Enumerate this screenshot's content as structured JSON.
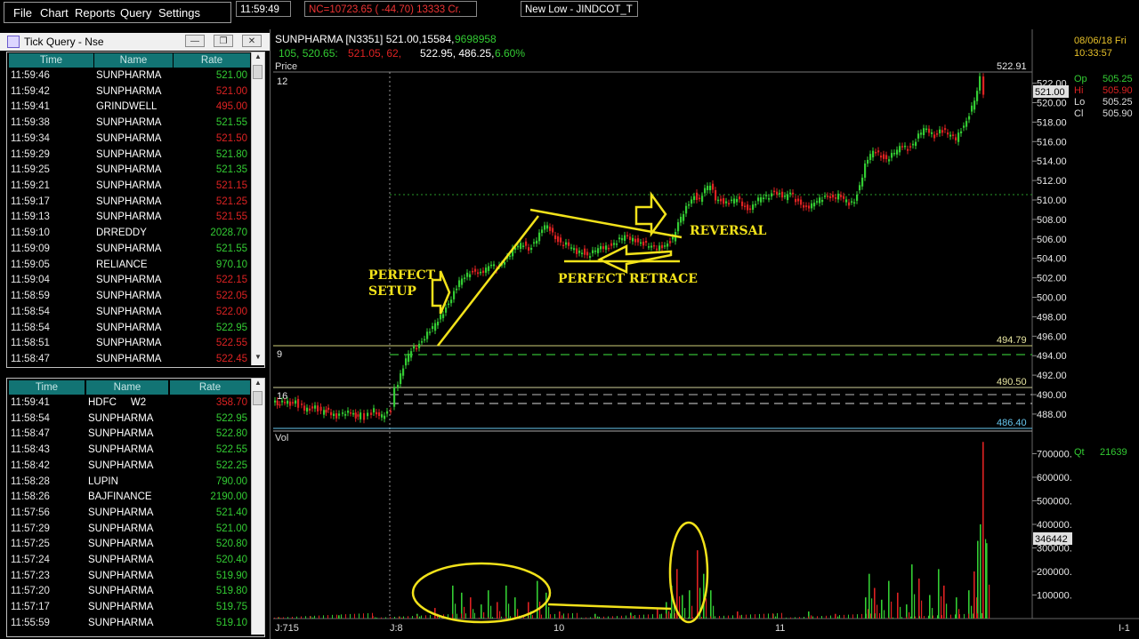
{
  "menu": {
    "items": [
      "File",
      "Chart",
      "Reports",
      "Query",
      "Settings"
    ],
    "clock": "11:59:49",
    "index_ticker": "NC=10723.65 ( -44.70) 13333 Cr.",
    "alert": "New Low - JINDCOT_T"
  },
  "tick_window": {
    "title": "Tick Query - Nse",
    "headers": [
      "Time",
      "Name",
      "Rate"
    ],
    "rows": [
      {
        "time": "11:59:46",
        "name": "SUNPHARMA",
        "rate": "521.00",
        "dir": "up"
      },
      {
        "time": "11:59:42",
        "name": "SUNPHARMA",
        "rate": "521.00",
        "dir": "dn"
      },
      {
        "time": "11:59:41",
        "name": "GRINDWELL",
        "rate": "495.00",
        "dir": "dn"
      },
      {
        "time": "11:59:38",
        "name": "SUNPHARMA",
        "rate": "521.55",
        "dir": "up"
      },
      {
        "time": "11:59:34",
        "name": "SUNPHARMA",
        "rate": "521.50",
        "dir": "dn"
      },
      {
        "time": "11:59:29",
        "name": "SUNPHARMA",
        "rate": "521.80",
        "dir": "up"
      },
      {
        "time": "11:59:25",
        "name": "SUNPHARMA",
        "rate": "521.35",
        "dir": "up"
      },
      {
        "time": "11:59:21",
        "name": "SUNPHARMA",
        "rate": "521.15",
        "dir": "dn"
      },
      {
        "time": "11:59:17",
        "name": "SUNPHARMA",
        "rate": "521.25",
        "dir": "dn"
      },
      {
        "time": "11:59:13",
        "name": "SUNPHARMA",
        "rate": "521.55",
        "dir": "dn"
      },
      {
        "time": "11:59:10",
        "name": "DRREDDY",
        "rate": "2028.70",
        "dir": "up"
      },
      {
        "time": "11:59:09",
        "name": "SUNPHARMA",
        "rate": "521.55",
        "dir": "up"
      },
      {
        "time": "11:59:05",
        "name": "RELIANCE",
        "rate": "970.10",
        "dir": "up"
      },
      {
        "time": "11:59:04",
        "name": "SUNPHARMA",
        "rate": "522.15",
        "dir": "dn"
      },
      {
        "time": "11:58:59",
        "name": "SUNPHARMA",
        "rate": "522.05",
        "dir": "dn"
      },
      {
        "time": "11:58:54",
        "name": "SUNPHARMA",
        "rate": "522.00",
        "dir": "dn"
      },
      {
        "time": "11:58:54",
        "name": "SUNPHARMA",
        "rate": "522.95",
        "dir": "up"
      },
      {
        "time": "11:58:51",
        "name": "SUNPHARMA",
        "rate": "522.55",
        "dir": "dn"
      },
      {
        "time": "11:58:47",
        "name": "SUNPHARMA",
        "rate": "522.45",
        "dir": "dn"
      }
    ]
  },
  "tick_window2": {
    "headers": [
      "Time",
      "Name",
      "Rate"
    ],
    "rows": [
      {
        "time": "11:59:41",
        "name": "HDFC     W2",
        "rate": "358.70",
        "dir": "dn"
      },
      {
        "time": "11:58:54",
        "name": "SUNPHARMA",
        "rate": "522.95",
        "dir": "up"
      },
      {
        "time": "11:58:47",
        "name": "SUNPHARMA",
        "rate": "522.80",
        "dir": "up"
      },
      {
        "time": "11:58:43",
        "name": "SUNPHARMA",
        "rate": "522.55",
        "dir": "up"
      },
      {
        "time": "11:58:42",
        "name": "SUNPHARMA",
        "rate": "522.25",
        "dir": "up"
      },
      {
        "time": "11:58:28",
        "name": "LUPIN",
        "rate": "790.00",
        "dir": "up"
      },
      {
        "time": "11:58:26",
        "name": "BAJFINANCE",
        "rate": "2190.00",
        "dir": "up"
      },
      {
        "time": "11:57:56",
        "name": "SUNPHARMA",
        "rate": "521.40",
        "dir": "up"
      },
      {
        "time": "11:57:29",
        "name": "SUNPHARMA",
        "rate": "521.00",
        "dir": "up"
      },
      {
        "time": "11:57:25",
        "name": "SUNPHARMA",
        "rate": "520.80",
        "dir": "up"
      },
      {
        "time": "11:57:24",
        "name": "SUNPHARMA",
        "rate": "520.40",
        "dir": "up"
      },
      {
        "time": "11:57:23",
        "name": "SUNPHARMA",
        "rate": "519.90",
        "dir": "up"
      },
      {
        "time": "11:57:20",
        "name": "SUNPHARMA",
        "rate": "519.80",
        "dir": "up"
      },
      {
        "time": "11:57:17",
        "name": "SUNPHARMA",
        "rate": "519.75",
        "dir": "up"
      },
      {
        "time": "11:55:59",
        "name": "SUNPHARMA",
        "rate": "519.10",
        "dir": "up"
      }
    ]
  },
  "chart": {
    "symbol_line": "SUNPHARMA [N3351]  521.00,15584,",
    "symbol_volume": "9698958",
    "quote_a": "105,  520.65:",
    "quote_b": "521.05,  62,",
    "quote_c": "522.95,  486.25,",
    "quote_d": "6.60%",
    "price_label": "Price",
    "vol_label": "Vol",
    "date": "08/06/18 Fri",
    "time": "10:33:57",
    "ohlc": {
      "op_label": "Op",
      "op": "505.25",
      "hi_label": "Hi",
      "hi": "505.90",
      "lo_label": "Lo",
      "lo": "505.25",
      "cl_label": "Cl",
      "cl": "505.90"
    },
    "qt_label": "Qt",
    "qt_value": "21639",
    "last_price": "521.00",
    "vol_marker": "346442",
    "xlabels": [
      "J:715",
      "J:8",
      "10",
      "11",
      "I-1"
    ],
    "indicator_labels": [
      "12",
      "9",
      "16"
    ],
    "level_labels": [
      "522.91",
      "494.79",
      "490.50",
      "486.40"
    ],
    "annotations": {
      "perfect_setup_1": "PERFECT",
      "perfect_setup_2": "SETUP",
      "perfect_retrace": "PERFECT RETRACE",
      "reversal": "REVERSAL"
    },
    "colors": {
      "up": "#33cc33",
      "down": "#dd2222",
      "annotation": "#f2e21a"
    }
  },
  "chart_data": {
    "type": "candlestick",
    "price_axis": {
      "ticks": [
        "522.00",
        "520.00",
        "518.00",
        "516.00",
        "514.00",
        "512.00",
        "510.00",
        "508.00",
        "506.00",
        "504.00",
        "502.00",
        "500.00",
        "498.00",
        "496.00",
        "494.00",
        "492.00",
        "490.00",
        "488.00"
      ]
    },
    "volume_axis": {
      "ticks": [
        "700000.",
        "600000.",
        "500000.",
        "400000.",
        "300000.",
        "200000.",
        "100000."
      ]
    },
    "price_path": [
      [
        0,
        489.2
      ],
      [
        8,
        489.0
      ],
      [
        14,
        489.3
      ],
      [
        20,
        489.1
      ],
      [
        26,
        489.5
      ],
      [
        30,
        488.9
      ],
      [
        36,
        488.5
      ],
      [
        42,
        488.6
      ],
      [
        48,
        488.9
      ],
      [
        55,
        488.1
      ],
      [
        60,
        488.4
      ],
      [
        66,
        488.0
      ],
      [
        72,
        487.8
      ],
      [
        76,
        488.2
      ],
      [
        82,
        487.9
      ],
      [
        88,
        488.3
      ],
      [
        96,
        487.5
      ],
      [
        100,
        488.0
      ],
      [
        104,
        487.6
      ],
      [
        108,
        487.9
      ],
      [
        114,
        488.4
      ],
      [
        120,
        487.6
      ],
      [
        126,
        487.9
      ],
      [
        130,
        488.1
      ],
      [
        134,
        488.5
      ],
      [
        138,
        490.5
      ],
      [
        144,
        492.0
      ],
      [
        150,
        493.5
      ],
      [
        156,
        494.5
      ],
      [
        162,
        495.0
      ],
      [
        168,
        495.6
      ],
      [
        174,
        496.3
      ],
      [
        180,
        496.8
      ],
      [
        186,
        497.5
      ],
      [
        192,
        498.5
      ],
      [
        198,
        499.5
      ],
      [
        204,
        500.5
      ],
      [
        210,
        501.5
      ],
      [
        216,
        502.0
      ],
      [
        222,
        502.6
      ],
      [
        228,
        502.8
      ],
      [
        234,
        502.5
      ],
      [
        240,
        502.8
      ],
      [
        246,
        503.3
      ],
      [
        252,
        503.0
      ],
      [
        258,
        503.6
      ],
      [
        264,
        504.1
      ],
      [
        270,
        504.8
      ],
      [
        276,
        505.2
      ],
      [
        282,
        505.5
      ],
      [
        288,
        505.0
      ],
      [
        294,
        505.6
      ],
      [
        300,
        506.4
      ],
      [
        306,
        507.3
      ],
      [
        312,
        507.0
      ],
      [
        318,
        506.2
      ],
      [
        324,
        505.6
      ],
      [
        330,
        505.4
      ],
      [
        336,
        505.0
      ],
      [
        342,
        504.6
      ],
      [
        348,
        504.8
      ],
      [
        354,
        504.3
      ],
      [
        360,
        504.6
      ],
      [
        366,
        504.9
      ],
      [
        372,
        505.1
      ],
      [
        378,
        505.3
      ],
      [
        384,
        505.6
      ],
      [
        390,
        505.9
      ],
      [
        396,
        506.2
      ],
      [
        402,
        506.0
      ],
      [
        408,
        505.9
      ],
      [
        414,
        505.7
      ],
      [
        420,
        505.4
      ],
      [
        426,
        505.1
      ],
      [
        432,
        505.0
      ],
      [
        438,
        505.3
      ],
      [
        444,
        505.6
      ],
      [
        450,
        506.0
      ],
      [
        456,
        507.5
      ],
      [
        462,
        508.6
      ],
      [
        468,
        509.8
      ],
      [
        474,
        510.5
      ],
      [
        480,
        510.0
      ],
      [
        486,
        511.0
      ],
      [
        492,
        511.5
      ],
      [
        498,
        510.2
      ],
      [
        504,
        510.0
      ],
      [
        510,
        509.7
      ],
      [
        516,
        509.8
      ],
      [
        522,
        510.1
      ],
      [
        528,
        509.6
      ],
      [
        534,
        509.1
      ],
      [
        540,
        509.4
      ],
      [
        546,
        510.0
      ],
      [
        552,
        510.2
      ],
      [
        558,
        510.4
      ],
      [
        564,
        511.0
      ],
      [
        570,
        510.6
      ],
      [
        576,
        510.2
      ],
      [
        582,
        510.7
      ],
      [
        588,
        510.0
      ],
      [
        594,
        509.7
      ],
      [
        600,
        509.2
      ],
      [
        606,
        509.4
      ],
      [
        612,
        509.8
      ],
      [
        618,
        510.2
      ],
      [
        624,
        510.6
      ],
      [
        630,
        510.2
      ],
      [
        636,
        510.4
      ],
      [
        642,
        510.0
      ],
      [
        648,
        509.6
      ],
      [
        654,
        510.0
      ],
      [
        660,
        511.5
      ],
      [
        666,
        513.5
      ],
      [
        672,
        514.6
      ],
      [
        678,
        515.0
      ],
      [
        684,
        514.6
      ],
      [
        690,
        514.2
      ],
      [
        696,
        514.6
      ],
      [
        702,
        515.0
      ],
      [
        708,
        515.6
      ],
      [
        714,
        515.3
      ],
      [
        720,
        515.8
      ],
      [
        726,
        516.6
      ],
      [
        732,
        517.2
      ],
      [
        738,
        517.0
      ],
      [
        744,
        516.6
      ],
      [
        750,
        517.3
      ],
      [
        756,
        517.0
      ],
      [
        762,
        516.5
      ],
      [
        768,
        516.2
      ],
      [
        774,
        517.3
      ],
      [
        780,
        518.2
      ],
      [
        786,
        519.5
      ],
      [
        792,
        521.0
      ],
      [
        796,
        522.5
      ],
      [
        800,
        521.0
      ]
    ],
    "volume": [
      [
        4,
        6000
      ],
      [
        40,
        10000
      ],
      [
        72,
        14000
      ],
      [
        110,
        12000
      ],
      [
        140,
        9000
      ],
      [
        160,
        20000
      ],
      [
        180,
        45000
      ],
      [
        200,
        140000
      ],
      [
        210,
        110000
      ],
      [
        220,
        90000
      ],
      [
        232,
        60000
      ],
      [
        240,
        120000
      ],
      [
        250,
        70000
      ],
      [
        260,
        140000
      ],
      [
        270,
        90000
      ],
      [
        285,
        70000
      ],
      [
        295,
        160000
      ],
      [
        305,
        110000
      ],
      [
        320,
        30000
      ],
      [
        360,
        20000
      ],
      [
        400,
        25000
      ],
      [
        430,
        40000
      ],
      [
        440,
        70000
      ],
      [
        446,
        140000
      ],
      [
        452,
        210000
      ],
      [
        458,
        100000
      ],
      [
        466,
        120000
      ],
      [
        475,
        290000
      ],
      [
        482,
        190000
      ],
      [
        490,
        120000
      ],
      [
        520,
        30000
      ],
      [
        560,
        20000
      ],
      [
        600,
        30000
      ],
      [
        630,
        20000
      ],
      [
        664,
        90000
      ],
      [
        668,
        190000
      ],
      [
        674,
        130000
      ],
      [
        682,
        80000
      ],
      [
        690,
        160000
      ],
      [
        700,
        110000
      ],
      [
        710,
        60000
      ],
      [
        716,
        230000
      ],
      [
        724,
        170000
      ],
      [
        736,
        100000
      ],
      [
        746,
        210000
      ],
      [
        752,
        140000
      ],
      [
        766,
        90000
      ],
      [
        780,
        120000
      ],
      [
        786,
        200000
      ],
      [
        790,
        330000
      ],
      [
        793,
        400000
      ],
      [
        796,
        750000
      ],
      [
        800,
        320000
      ]
    ]
  }
}
